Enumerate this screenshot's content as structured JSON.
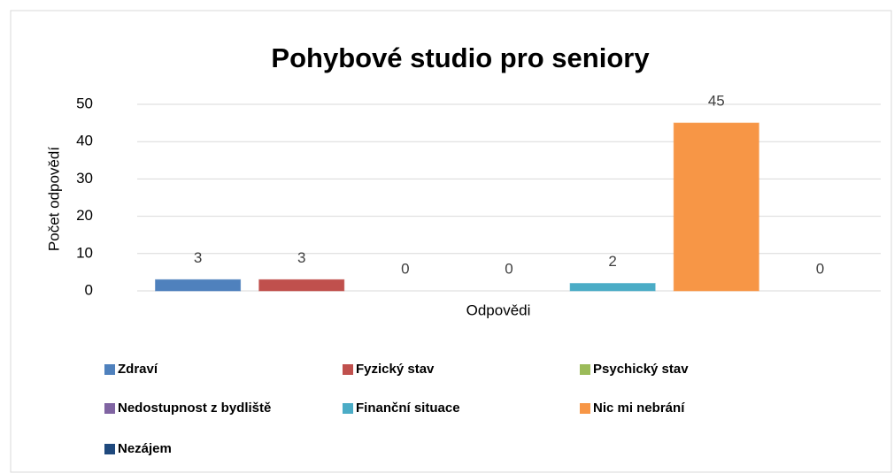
{
  "chart_data": {
    "type": "bar",
    "title": "Pohybové studio pro seniory",
    "xlabel": "Odpovědi",
    "ylabel": "Počet odpovědí",
    "categories": [
      null
    ],
    "series": [
      {
        "name": "Zdraví",
        "color": "#4f81bd",
        "values": [
          3
        ]
      },
      {
        "name": "Fyzický stav",
        "color": "#c0504d",
        "values": [
          3
        ]
      },
      {
        "name": "Psychický stav",
        "color": "#9bbb59",
        "values": [
          0
        ]
      },
      {
        "name": "Nedostupnost z bydliště",
        "color": "#8064a2",
        "values": [
          0
        ]
      },
      {
        "name": "Finanční situace",
        "color": "#4bacc6",
        "values": [
          2
        ]
      },
      {
        "name": "Nic mi nebrání",
        "color": "#f79646",
        "values": [
          45
        ]
      },
      {
        "name": "Nezájem",
        "color": "#1f497d",
        "values": [
          0
        ]
      }
    ],
    "ylim": [
      0,
      50
    ],
    "yticks": [
      0,
      10,
      20,
      30,
      40,
      50
    ],
    "grid": true,
    "legend": "bottom"
  }
}
